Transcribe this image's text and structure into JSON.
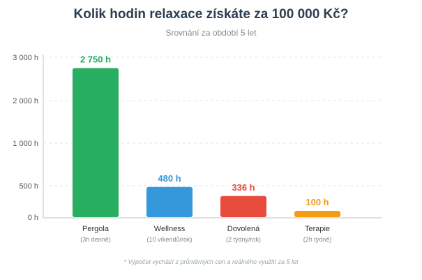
{
  "title": "Kolik hodin relaxace získáte za 100 000 Kč?",
  "subtitle": "Srovnání za období 5 let",
  "footnote": "* Výpočet vychází z průměrných cen a reálného využití za 5 let",
  "chart_data": {
    "type": "bar",
    "categories": [
      "Pergola",
      "Wellness",
      "Dovolená",
      "Terapie"
    ],
    "category_sublabels": [
      "(3h denně)",
      "(10 víkendů/rok)",
      "(2 týdny/rok)",
      "(2h týdně)"
    ],
    "values": [
      2750,
      480,
      336,
      100
    ],
    "value_labels": [
      "2 750 h",
      "480 h",
      "336 h",
      "100 h"
    ],
    "colors": [
      "#27ae60",
      "#3498db",
      "#e74c3c",
      "#f39c12"
    ],
    "yticks": [
      0,
      500,
      1000,
      2000,
      3000
    ],
    "ytick_labels": [
      "0 h",
      "500 h",
      "1 000 h",
      "2 000 h",
      "3 000 h"
    ],
    "ylim": [
      0,
      3000
    ],
    "grid": true,
    "xlabel": "",
    "ylabel": ""
  }
}
